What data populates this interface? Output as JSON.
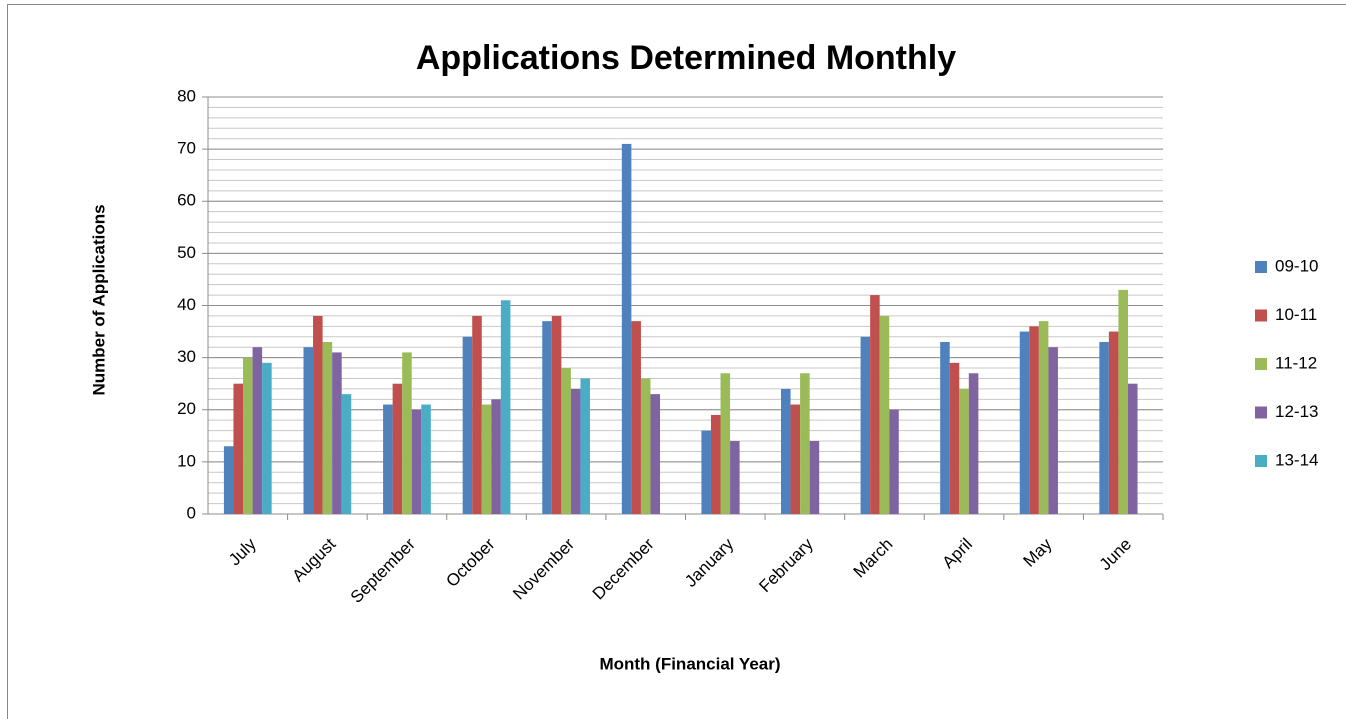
{
  "chart_data": {
    "type": "bar",
    "title": "Applications Determined Monthly",
    "x_label": "Month (Financial Year)",
    "y_label": "Number of Applications",
    "categories": [
      "July",
      "August",
      "September",
      "October",
      "November",
      "December",
      "January",
      "February",
      "March",
      "April",
      "May",
      "June"
    ],
    "series": [
      {
        "name": "09-10",
        "color": "#4f81bd",
        "values": [
          13,
          32,
          21,
          34,
          37,
          71,
          16,
          24,
          34,
          33,
          35,
          33
        ]
      },
      {
        "name": "10-11",
        "color": "#c0504d",
        "values": [
          25,
          38,
          25,
          38,
          38,
          37,
          19,
          21,
          42,
          29,
          36,
          35
        ]
      },
      {
        "name": "11-12",
        "color": "#9bbb59",
        "values": [
          30,
          33,
          31,
          21,
          28,
          26,
          27,
          27,
          38,
          24,
          37,
          43
        ]
      },
      {
        "name": "12-13",
        "color": "#8064a2",
        "values": [
          32,
          31,
          20,
          22,
          24,
          23,
          14,
          14,
          20,
          27,
          32,
          25
        ]
      },
      {
        "name": "13-14",
        "color": "#4bacc6",
        "values": [
          29,
          23,
          21,
          41,
          26,
          null,
          null,
          null,
          null,
          null,
          null,
          null
        ]
      }
    ],
    "ylim": [
      0,
      80
    ],
    "yticks": [
      0,
      10,
      20,
      30,
      40,
      50,
      60,
      70,
      80
    ],
    "minor_ystep": 2,
    "grid": true,
    "legend": "right"
  }
}
